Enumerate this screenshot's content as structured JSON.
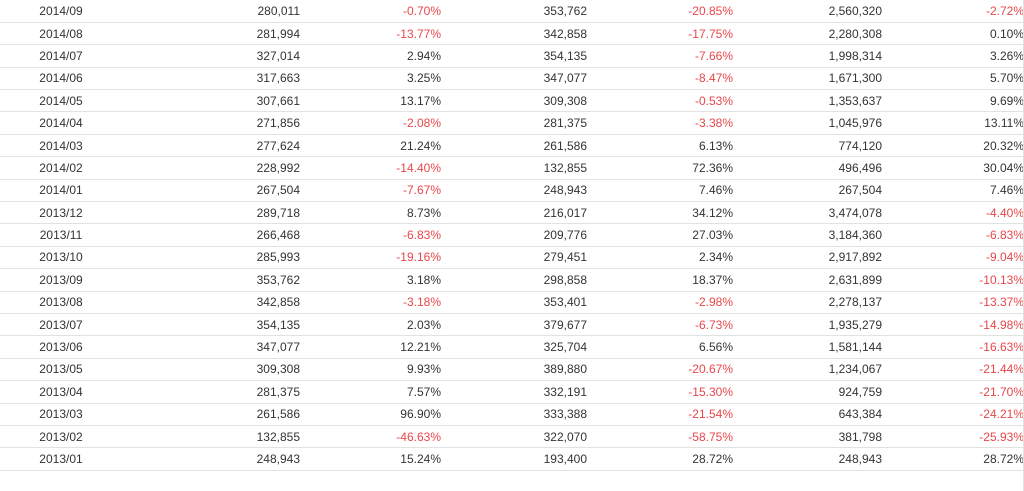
{
  "rows": [
    {
      "period": "2014/09",
      "v1": "280,011",
      "p1": "-0.70%",
      "v2": "353,762",
      "p2": "-20.85%",
      "v3": "2,560,320",
      "p3": "-2.72%"
    },
    {
      "period": "2014/08",
      "v1": "281,994",
      "p1": "-13.77%",
      "v2": "342,858",
      "p2": "-17.75%",
      "v3": "2,280,308",
      "p3": "0.10%"
    },
    {
      "period": "2014/07",
      "v1": "327,014",
      "p1": "2.94%",
      "v2": "354,135",
      "p2": "-7.66%",
      "v3": "1,998,314",
      "p3": "3.26%"
    },
    {
      "period": "2014/06",
      "v1": "317,663",
      "p1": "3.25%",
      "v2": "347,077",
      "p2": "-8.47%",
      "v3": "1,671,300",
      "p3": "5.70%"
    },
    {
      "period": "2014/05",
      "v1": "307,661",
      "p1": "13.17%",
      "v2": "309,308",
      "p2": "-0.53%",
      "v3": "1,353,637",
      "p3": "9.69%"
    },
    {
      "period": "2014/04",
      "v1": "271,856",
      "p1": "-2.08%",
      "v2": "281,375",
      "p2": "-3.38%",
      "v3": "1,045,976",
      "p3": "13.11%"
    },
    {
      "period": "2014/03",
      "v1": "277,624",
      "p1": "21.24%",
      "v2": "261,586",
      "p2": "6.13%",
      "v3": "774,120",
      "p3": "20.32%"
    },
    {
      "period": "2014/02",
      "v1": "228,992",
      "p1": "-14.40%",
      "v2": "132,855",
      "p2": "72.36%",
      "v3": "496,496",
      "p3": "30.04%"
    },
    {
      "period": "2014/01",
      "v1": "267,504",
      "p1": "-7.67%",
      "v2": "248,943",
      "p2": "7.46%",
      "v3": "267,504",
      "p3": "7.46%"
    },
    {
      "period": "2013/12",
      "v1": "289,718",
      "p1": "8.73%",
      "v2": "216,017",
      "p2": "34.12%",
      "v3": "3,474,078",
      "p3": "-4.40%"
    },
    {
      "period": "2013/11",
      "v1": "266,468",
      "p1": "-6.83%",
      "v2": "209,776",
      "p2": "27.03%",
      "v3": "3,184,360",
      "p3": "-6.83%"
    },
    {
      "period": "2013/10",
      "v1": "285,993",
      "p1": "-19.16%",
      "v2": "279,451",
      "p2": "2.34%",
      "v3": "2,917,892",
      "p3": "-9.04%"
    },
    {
      "period": "2013/09",
      "v1": "353,762",
      "p1": "3.18%",
      "v2": "298,858",
      "p2": "18.37%",
      "v3": "2,631,899",
      "p3": "-10.13%"
    },
    {
      "period": "2013/08",
      "v1": "342,858",
      "p1": "-3.18%",
      "v2": "353,401",
      "p2": "-2.98%",
      "v3": "2,278,137",
      "p3": "-13.37%"
    },
    {
      "period": "2013/07",
      "v1": "354,135",
      "p1": "2.03%",
      "v2": "379,677",
      "p2": "-6.73%",
      "v3": "1,935,279",
      "p3": "-14.98%"
    },
    {
      "period": "2013/06",
      "v1": "347,077",
      "p1": "12.21%",
      "v2": "325,704",
      "p2": "6.56%",
      "v3": "1,581,144",
      "p3": "-16.63%"
    },
    {
      "period": "2013/05",
      "v1": "309,308",
      "p1": "9.93%",
      "v2": "389,880",
      "p2": "-20.67%",
      "v3": "1,234,067",
      "p3": "-21.44%"
    },
    {
      "period": "2013/04",
      "v1": "281,375",
      "p1": "7.57%",
      "v2": "332,191",
      "p2": "-15.30%",
      "v3": "924,759",
      "p3": "-21.70%"
    },
    {
      "period": "2013/03",
      "v1": "261,586",
      "p1": "96.90%",
      "v2": "333,388",
      "p2": "-21.54%",
      "v3": "643,384",
      "p3": "-24.21%"
    },
    {
      "period": "2013/02",
      "v1": "132,855",
      "p1": "-46.63%",
      "v2": "322,070",
      "p2": "-58.75%",
      "v3": "381,798",
      "p3": "-25.93%"
    },
    {
      "period": "2013/01",
      "v1": "248,943",
      "p1": "15.24%",
      "v2": "193,400",
      "p2": "28.72%",
      "v3": "248,943",
      "p3": "28.72%"
    }
  ],
  "colors": {
    "negative": "#e8474a",
    "text": "#333333",
    "border": "#e2e2e2"
  }
}
